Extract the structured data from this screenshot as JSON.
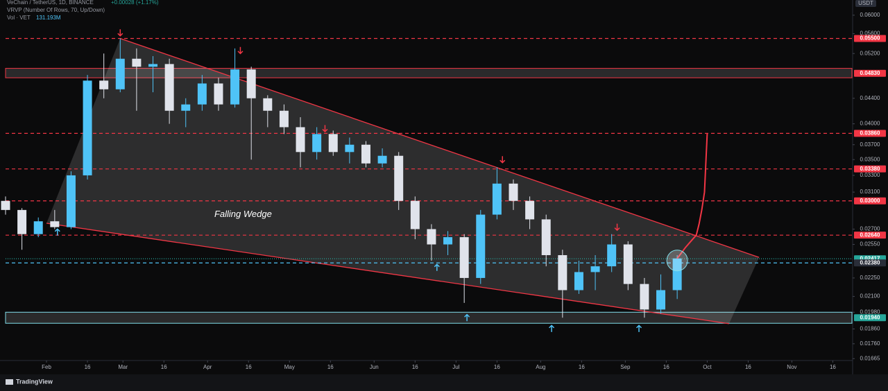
{
  "chart_data": {
    "type": "candlestick",
    "header": {
      "symbol": "VeChain / TetherUS, 1D, BINANCE",
      "change": "+0.00028 (+1.17%)",
      "indicator": "VRVP (Number Of Rows, 70, Up/Down)",
      "volume_name": "Vol · VET",
      "volume_value": "131.193M"
    },
    "currency": "USDT",
    "brand": "TradingView",
    "log_scale": true,
    "grid": false,
    "up_color": "#4fc3f7",
    "down_color": "#e0e3eb",
    "x": [
      17,
      23,
      29,
      35,
      41,
      47,
      53,
      59,
      65,
      71,
      77,
      83,
      89,
      95,
      101,
      107,
      113,
      119,
      125,
      131,
      137,
      143,
      149,
      155,
      161,
      167,
      173,
      179,
      185,
      191,
      197,
      203,
      209,
      215,
      221,
      227,
      233,
      239,
      245,
      251,
      257,
      263
    ],
    "open": [
      0.03,
      0.029,
      0.0265,
      0.0278,
      0.0272,
      0.033,
      0.047,
      0.0455,
      0.051,
      0.0495,
      0.05,
      0.042,
      0.043,
      0.0465,
      0.043,
      0.049,
      0.044,
      0.042,
      0.0395,
      0.036,
      0.0385,
      0.036,
      0.037,
      0.0345,
      0.0355,
      0.03,
      0.027,
      0.0255,
      0.0262,
      0.0225,
      0.0285,
      0.032,
      0.03,
      0.028,
      0.0245,
      0.0215,
      0.023,
      0.0235,
      0.0255,
      0.022,
      0.02,
      0.0215
    ],
    "high": [
      0.0305,
      0.0292,
      0.0282,
      0.029,
      0.0335,
      0.048,
      0.052,
      0.055,
      0.053,
      0.0515,
      0.051,
      0.044,
      0.048,
      0.0475,
      0.053,
      0.0495,
      0.0445,
      0.043,
      0.041,
      0.0395,
      0.039,
      0.038,
      0.0375,
      0.0365,
      0.036,
      0.0305,
      0.0275,
      0.0268,
      0.0265,
      0.029,
      0.034,
      0.0325,
      0.0305,
      0.0285,
      0.025,
      0.024,
      0.0245,
      0.0265,
      0.0258,
      0.0225,
      0.0228,
      0.0245
    ],
    "low": [
      0.0285,
      0.025,
      0.0262,
      0.027,
      0.027,
      0.0325,
      0.044,
      0.045,
      0.042,
      0.045,
      0.04,
      0.0395,
      0.042,
      0.042,
      0.0425,
      0.035,
      0.0395,
      0.0385,
      0.034,
      0.035,
      0.0355,
      0.0345,
      0.034,
      0.034,
      0.029,
      0.026,
      0.024,
      0.0245,
      0.0205,
      0.022,
      0.028,
      0.029,
      0.027,
      0.0235,
      0.0194,
      0.0212,
      0.0215,
      0.023,
      0.0215,
      0.0194,
      0.0197,
      0.0208
    ],
    "close": [
      0.029,
      0.0265,
      0.0278,
      0.0272,
      0.033,
      0.047,
      0.0455,
      0.051,
      0.0495,
      0.05,
      0.042,
      0.043,
      0.0465,
      0.043,
      0.049,
      0.044,
      0.042,
      0.0395,
      0.036,
      0.0385,
      0.036,
      0.037,
      0.0345,
      0.0355,
      0.03,
      0.027,
      0.0255,
      0.0262,
      0.0225,
      0.0285,
      0.032,
      0.03,
      0.028,
      0.0245,
      0.0215,
      0.023,
      0.0235,
      0.0255,
      0.022,
      0.02,
      0.0215,
      0.0242
    ],
    "xlim": [
      17,
      327
    ],
    "ylim": [
      0.0157,
      0.0635
    ],
    "xticks": [
      {
        "value": 32,
        "label": "Feb"
      },
      {
        "value": 47,
        "label": "16"
      },
      {
        "value": 60,
        "label": "Mar"
      },
      {
        "value": 75,
        "label": "16"
      },
      {
        "value": 91,
        "label": "Apr"
      },
      {
        "value": 106,
        "label": "16"
      },
      {
        "value": 121,
        "label": "May"
      },
      {
        "value": 136,
        "label": "16"
      },
      {
        "value": 152,
        "label": "Jun"
      },
      {
        "value": 167,
        "label": "16"
      },
      {
        "value": 182,
        "label": "Jul"
      },
      {
        "value": 197,
        "label": "16"
      },
      {
        "value": 213,
        "label": "Aug"
      },
      {
        "value": 228,
        "label": "16"
      },
      {
        "value": 244,
        "label": "Sep"
      },
      {
        "value": 259,
        "label": "16"
      },
      {
        "value": 274,
        "label": "Oct"
      },
      {
        "value": 289,
        "label": "16"
      },
      {
        "value": 305,
        "label": "Nov"
      },
      {
        "value": 320,
        "label": "16"
      }
    ],
    "yticks": [
      {
        "value": 0.06,
        "label": "0.06000"
      },
      {
        "value": 0.056,
        "label": "0.05600"
      },
      {
        "value": 0.052,
        "label": "0.05200"
      },
      {
        "value": 0.044,
        "label": "0.04400"
      },
      {
        "value": 0.04,
        "label": "0.04000"
      },
      {
        "value": 0.037,
        "label": "0.03700"
      },
      {
        "value": 0.035,
        "label": "0.03500"
      },
      {
        "value": 0.033,
        "label": "0.03300"
      },
      {
        "value": 0.031,
        "label": "0.03100"
      },
      {
        "value": 0.027,
        "label": "0.02700"
      },
      {
        "value": 0.0255,
        "label": "0.02550"
      },
      {
        "value": 0.0225,
        "label": "0.02250"
      },
      {
        "value": 0.021,
        "label": "0.02100"
      },
      {
        "value": 0.0198,
        "label": "0.01980"
      },
      {
        "value": 0.0186,
        "label": "0.01860"
      },
      {
        "value": 0.0176,
        "label": "0.01760"
      },
      {
        "value": 0.01665,
        "label": "0.01665"
      }
    ],
    "levels": [
      {
        "value": 0.055,
        "label": "0.05500",
        "color": "#f23645",
        "style": "dashed"
      },
      {
        "value": 0.0483,
        "label": "0.04830",
        "color": "#f23645",
        "style": "none"
      },
      {
        "value": 0.0386,
        "label": "0.03860",
        "color": "#f23645",
        "style": "dashed"
      },
      {
        "value": 0.0338,
        "label": "0.03380",
        "color": "#f23645",
        "style": "dashed"
      },
      {
        "value": 0.03,
        "label": "0.03000",
        "color": "#f23645",
        "style": "dashed"
      },
      {
        "value": 0.0264,
        "label": "0.02640",
        "color": "#f23645",
        "style": "dashed"
      },
      {
        "value": 0.02417,
        "label": "0.02417",
        "color": "#26a69a",
        "style": "dotted"
      },
      {
        "value": 0.0238,
        "label": "0.02380",
        "color": "#2a2e39",
        "style": "dashed"
      },
      {
        "value": 0.0194,
        "label": "0.01940",
        "color": "#26a69a",
        "style": "none"
      }
    ],
    "zones": [
      {
        "low": 0.0475,
        "high": 0.0492,
        "color": "#f23645"
      },
      {
        "low": 0.019,
        "high": 0.0198,
        "color": "#80deea"
      }
    ],
    "wedge": {
      "color": "#f23645",
      "upper": {
        "x": [
          59,
          293
        ],
        "y": [
          0.055,
          0.0243
        ]
      },
      "lower": {
        "x": [
          32,
          282
        ],
        "y": [
          0.0276,
          0.01897
        ]
      }
    },
    "projection": {
      "color": "#f23645",
      "x": [
        263,
        266,
        268,
        270,
        271,
        272,
        273,
        274
      ],
      "y": [
        0.0242,
        0.0252,
        0.0258,
        0.0264,
        0.0275,
        0.029,
        0.031,
        0.0386
      ]
    },
    "markers": [
      {
        "x": 59,
        "y": 0.0562,
        "dir": "down"
      },
      {
        "x": 103,
        "y": 0.0526,
        "dir": "down"
      },
      {
        "x": 134,
        "y": 0.0393,
        "dir": "down"
      },
      {
        "x": 199,
        "y": 0.035,
        "dir": "down"
      },
      {
        "x": 241,
        "y": 0.0272,
        "dir": "down"
      },
      {
        "x": 36,
        "y": 0.0267,
        "dir": "up"
      },
      {
        "x": 175,
        "y": 0.0234,
        "dir": "up"
      },
      {
        "x": 186,
        "y": 0.0194,
        "dir": "up"
      },
      {
        "x": 217,
        "y": 0.01863,
        "dir": "up"
      },
      {
        "x": 249,
        "y": 0.01863,
        "dir": "up"
      }
    ],
    "annotation": {
      "text": "Falling Wedge",
      "x": 104,
      "y": 0.0285
    }
  }
}
